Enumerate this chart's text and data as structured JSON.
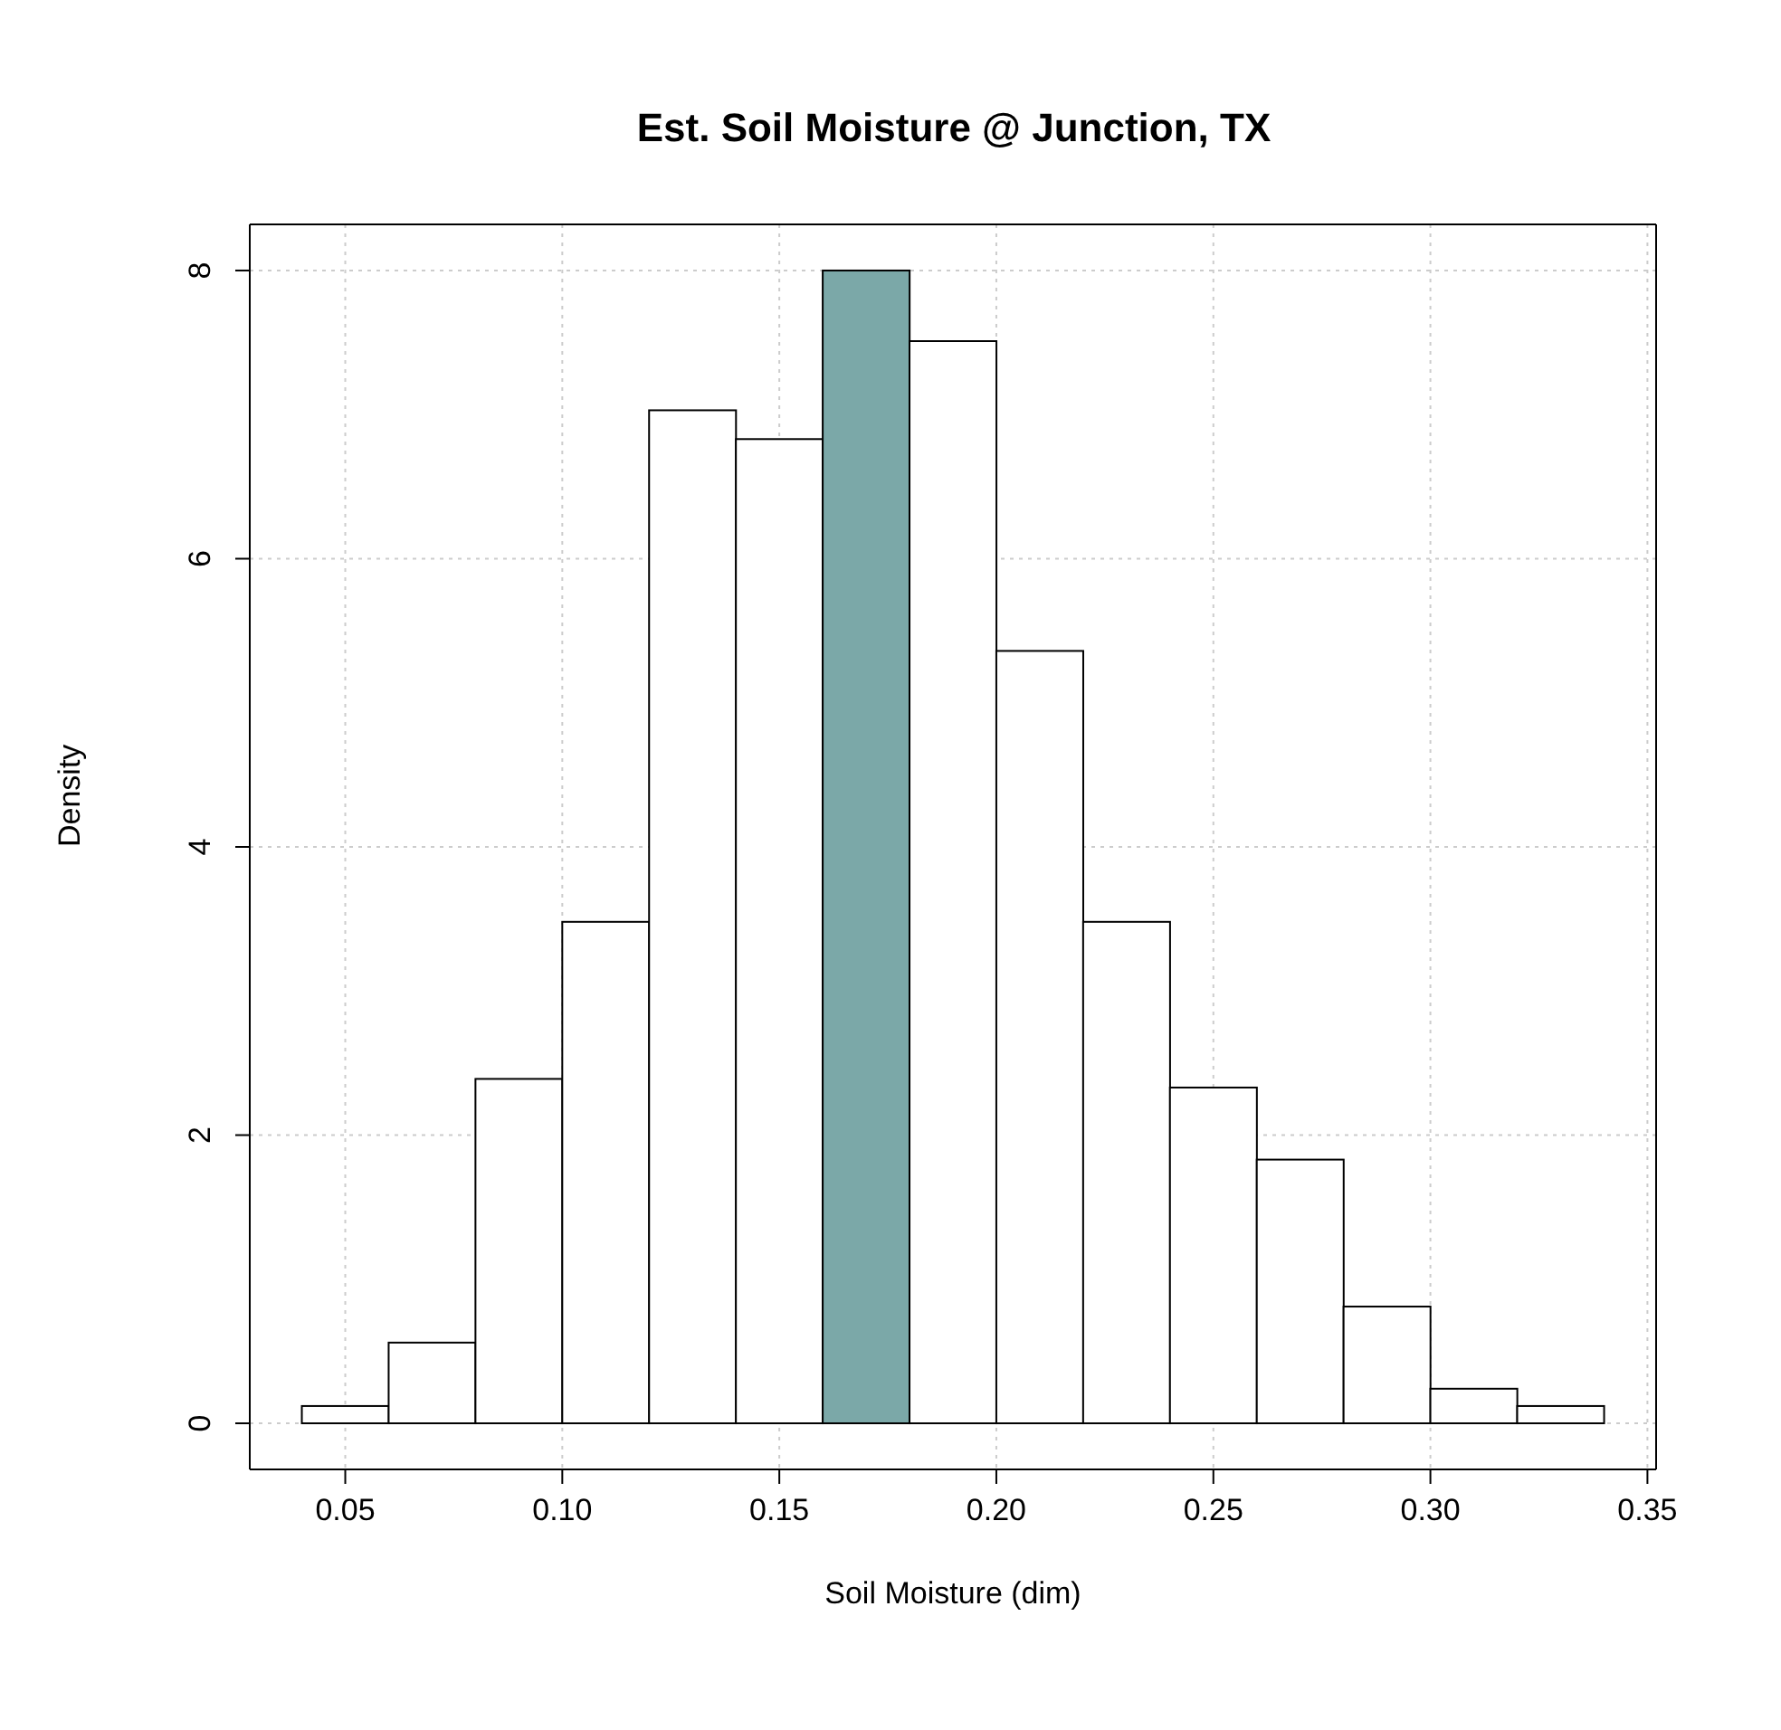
{
  "chart_data": {
    "type": "histogram",
    "title": "Est. Soil Moisture @ Junction, TX",
    "xlabel": "Soil Moisture (dim)",
    "ylabel": "Density",
    "bins": [
      0.04,
      0.06,
      0.08,
      0.1,
      0.12,
      0.14,
      0.16,
      0.18,
      0.2,
      0.22,
      0.24,
      0.26,
      0.28,
      0.3,
      0.32,
      0.34
    ],
    "values": [
      0.12,
      0.56,
      2.39,
      3.48,
      7.03,
      6.83,
      8.0,
      7.51,
      5.36,
      3.48,
      2.33,
      1.83,
      0.81,
      0.24,
      0.12
    ],
    "colors": [
      "#ffffff",
      "#ffffff",
      "#ffffff",
      "#ffffff",
      "#ffffff",
      "#ffffff",
      "#7ba8a8",
      "#ffffff",
      "#ffffff",
      "#ffffff",
      "#ffffff",
      "#ffffff",
      "#ffffff",
      "#ffffff",
      "#ffffff"
    ],
    "xlim": [
      0.028,
      0.352
    ],
    "xticks": [
      {
        "value": 0.05,
        "label": "0.05"
      },
      {
        "value": 0.1,
        "label": "0.10"
      },
      {
        "value": 0.15,
        "label": "0.15"
      },
      {
        "value": 0.2,
        "label": "0.20"
      },
      {
        "value": 0.25,
        "label": "0.25"
      },
      {
        "value": 0.3,
        "label": "0.30"
      },
      {
        "value": 0.35,
        "label": "0.35"
      }
    ],
    "ylim": [
      -0.32,
      8.32
    ],
    "yticks": [
      0,
      2,
      4,
      6,
      8
    ],
    "grid": true
  }
}
